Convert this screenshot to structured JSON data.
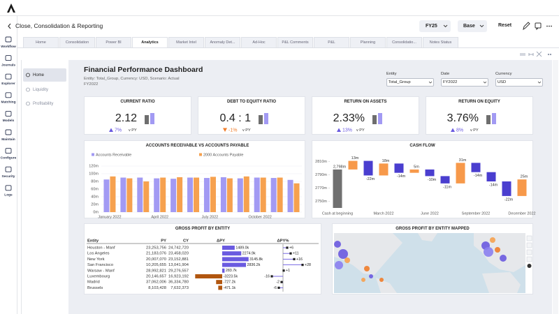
{
  "app": {
    "title": "Close, Consolidation & Reporting",
    "year": "FY25",
    "scenario": "Base",
    "reset": "Reset"
  },
  "sidebar": [
    "Workflow",
    "Journals",
    "Explorer",
    "Matching",
    "Models",
    "Maintain",
    "Configure",
    "Security",
    "Logs"
  ],
  "tabs": [
    "Home",
    "Consolidation",
    "Power BI",
    "Analytics",
    "Market Intel",
    "Anomaly Det...",
    "Ad-Hoc",
    "P&L Comments",
    "P&L",
    "Planning",
    "Consolidatio...",
    "Notes Status"
  ],
  "subnav": [
    "Home",
    "Liquidity",
    "Profitability"
  ],
  "dashboard": {
    "title": "Financial Performance Dashboard",
    "subtitle": "Entity: Total_Group, Currency: USD, Scenario: Actual FY2022",
    "filters": [
      {
        "label": "Entity",
        "value": "Total_Group"
      },
      {
        "label": "Date",
        "value": "FY2022"
      },
      {
        "label": "Currency",
        "value": "USD"
      }
    ]
  },
  "kpis": [
    {
      "title": "CURRENT RATIO",
      "value": "2.12",
      "change": "7%",
      "direction": "up",
      "comparison": "v PY"
    },
    {
      "title": "DEBT TO EQUITY RATIO",
      "value": "0.4 : 1",
      "change": "-1%",
      "direction": "down",
      "comparison": "v PY"
    },
    {
      "title": "RETURN ON ASSETS",
      "value": "2.33%",
      "change": "13%",
      "direction": "up",
      "comparison": "v PY"
    },
    {
      "title": "RETURN ON EQUITY",
      "value": "3.76%",
      "change": "8%",
      "direction": "up",
      "comparison": "v PY"
    }
  ],
  "chart_data": [
    {
      "type": "bar",
      "title": "ACCOUNTS RECEIVABLE VS ACCOUNTS PAYABLE",
      "categories": [
        "January 2022",
        null,
        null,
        "April 2022",
        null,
        null,
        "July 2022",
        null,
        null,
        "October 2022",
        null,
        null
      ],
      "series": [
        {
          "name": "Accounts Receivable",
          "color": "#a29af3",
          "values": [
            85,
            90,
            90,
            88,
            87,
            90,
            89,
            91,
            88,
            90,
            89,
            84
          ]
        },
        {
          "name": "2000 Accounts Payable",
          "color": "#f6a14f",
          "values": [
            93,
            88,
            80,
            90,
            91,
            90,
            92,
            88,
            93,
            90,
            90,
            75
          ]
        }
      ],
      "ylim": [
        0,
        120
      ],
      "yticks": [
        {
          "value": 0,
          "label": "0m"
        },
        {
          "value": 20,
          "label": "20m"
        },
        {
          "value": 40,
          "label": "40m"
        },
        {
          "value": 60,
          "label": "60m"
        },
        {
          "value": 80,
          "label": "80m"
        },
        {
          "value": 100,
          "label": "100m"
        },
        {
          "value": 120,
          "label": "120m"
        }
      ],
      "grid": true
    },
    {
      "type": "waterfall",
      "title": "CASH FLOW",
      "categories": [
        "Cash at beginning",
        null,
        null,
        "March 2022",
        null,
        null,
        "June 2022",
        null,
        null,
        "September 2022",
        null,
        null,
        "December 2022"
      ],
      "values": [
        2798,
        13,
        -22,
        18,
        -14,
        5,
        -10,
        -11,
        31,
        -14,
        -14,
        -22,
        25
      ],
      "value_labels": [
        "2,798m",
        "13m",
        "-22m",
        "18m",
        "-14m",
        "5m",
        "-10m",
        "-11m",
        "31m",
        "-14m",
        "-14m",
        "-22m",
        "25m"
      ],
      "colors": {
        "total": "#707070",
        "increase": "#f7994a",
        "decrease": "#4a3ecf"
      },
      "ylim": [
        2740,
        2820
      ],
      "yticks": [
        {
          "value": 2750,
          "label": "2750m"
        },
        {
          "value": 2770,
          "label": "2770m"
        },
        {
          "value": 2790,
          "label": "2790m"
        },
        {
          "value": 2810,
          "label": "2810m"
        }
      ],
      "grid": false
    }
  ],
  "gross_profit": {
    "title": "GROSS PROFIT BY ENTITY",
    "columns": [
      "Entity",
      "PY",
      "CY",
      "ΔPY",
      "ΔPY%"
    ],
    "rows": [
      [
        "Houston - Manf",
        "23,253,756",
        "24,742,720"
      ],
      [
        "Los Angeles",
        "21,183,076",
        "23,458,020"
      ],
      [
        "New York",
        "20,007,070",
        "23,152,881"
      ],
      [
        "San Francisco",
        "10,205,655",
        "13,041,904"
      ],
      [
        "Warsaw - Manf",
        "28,992,821",
        "29,276,557"
      ],
      [
        "Luxembourg",
        "20,146,657",
        "16,923,192"
      ],
      [
        "Madrid",
        "37,062,006",
        "36,334,780"
      ],
      [
        "Brussels",
        "8,103,428",
        "7,632,373"
      ]
    ],
    "delta_py": {
      "values": [
        1489.0,
        2274.9,
        3145.8,
        2836.2,
        283.7,
        -3223.5,
        -727.2,
        -471.1
      ],
      "value_labels": [
        "1489.0k",
        "2274.9k",
        "3145.8k",
        "2836.2k",
        "283.7k",
        "-3223.5k",
        "-727.2k",
        "-471.1k"
      ],
      "colors": {
        "increase": "#6a5ae0",
        "decrease": "#b1560f"
      }
    },
    "delta_pct": {
      "values": [
        6,
        11,
        16,
        28,
        1,
        -16,
        -2,
        -6
      ],
      "value_labels": [
        "+6",
        "+11",
        "+16",
        "+28",
        "+1",
        "-16",
        "-2",
        "-6"
      ],
      "color": "#6a5ae0"
    }
  },
  "map": {
    "title": "GROSS PROFIT BY ENTITY MAPPED"
  }
}
